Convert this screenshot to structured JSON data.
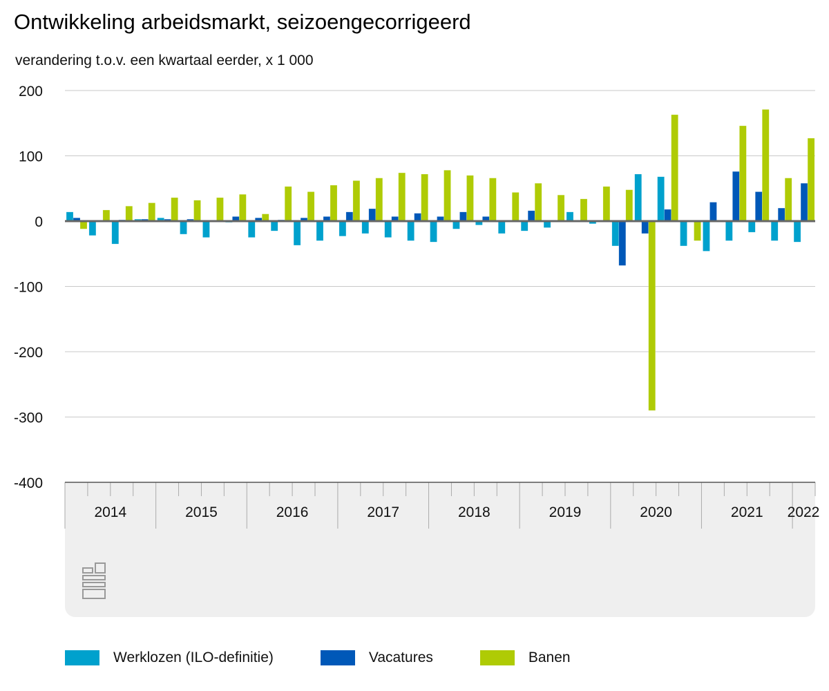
{
  "title": "Ontwikkeling arbeidsmarkt, seizoengecorrigeerd",
  "subtitle": "verandering t.o.v. een kwartaal eerder, x 1 000",
  "chart_data": {
    "type": "bar",
    "title": "Ontwikkeling arbeidsmarkt, seizoengecorrigeerd",
    "ylabel": "verandering t.o.v. een kwartaal eerder, x 1 000",
    "ylim": [
      -400,
      200
    ],
    "yticks": [
      200,
      100,
      0,
      -100,
      -200,
      -300,
      -400
    ],
    "ytick_labels": [
      "200",
      "100",
      "0",
      "-100",
      "-200",
      "-300",
      "-400"
    ],
    "grid": true,
    "legend": "bottom",
    "years": [
      "2014",
      "2015",
      "2016",
      "2017",
      "2018",
      "2019",
      "2020",
      "2021",
      "2022"
    ],
    "categories": [
      "2014 Q1",
      "2014 Q2",
      "2014 Q3",
      "2014 Q4",
      "2015 Q1",
      "2015 Q2",
      "2015 Q3",
      "2015 Q4",
      "2016 Q1",
      "2016 Q2",
      "2016 Q3",
      "2016 Q4",
      "2017 Q1",
      "2017 Q2",
      "2017 Q3",
      "2017 Q4",
      "2018 Q1",
      "2018 Q2",
      "2018 Q3",
      "2018 Q4",
      "2019 Q1",
      "2019 Q2",
      "2019 Q3",
      "2019 Q4",
      "2020 Q1",
      "2020 Q2",
      "2020 Q3",
      "2020 Q4",
      "2021 Q1",
      "2021 Q2",
      "2021 Q3",
      "2021 Q4",
      "2022 Q1"
    ],
    "series": [
      {
        "name": "Werklozen (ILO-definitie)",
        "color": "#00a1cd",
        "values": [
          14,
          -22,
          -35,
          3,
          5,
          -20,
          -25,
          -2,
          -25,
          -15,
          -37,
          -30,
          -23,
          -19,
          -25,
          -30,
          -32,
          -12,
          -6,
          -19,
          -15,
          -10,
          14,
          -4,
          -38,
          72,
          68,
          -38,
          -46,
          -30,
          -17,
          -30,
          -32
        ]
      },
      {
        "name": "Vacatures",
        "color": "#0058b8",
        "values": [
          5,
          0,
          2,
          3,
          3,
          3,
          0,
          7,
          5,
          2,
          5,
          7,
          14,
          19,
          7,
          12,
          7,
          14,
          7,
          0,
          16,
          0,
          0,
          0,
          -68,
          -19,
          18,
          0,
          29,
          76,
          45,
          20,
          58
        ]
      },
      {
        "name": "Banen",
        "color": "#afcb05",
        "values": [
          -12,
          17,
          23,
          28,
          36,
          32,
          36,
          41,
          11,
          53,
          45,
          55,
          62,
          66,
          74,
          72,
          78,
          70,
          66,
          44,
          58,
          40,
          34,
          53,
          48,
          -290,
          163,
          -30,
          0,
          146,
          171,
          66,
          127
        ]
      }
    ]
  }
}
